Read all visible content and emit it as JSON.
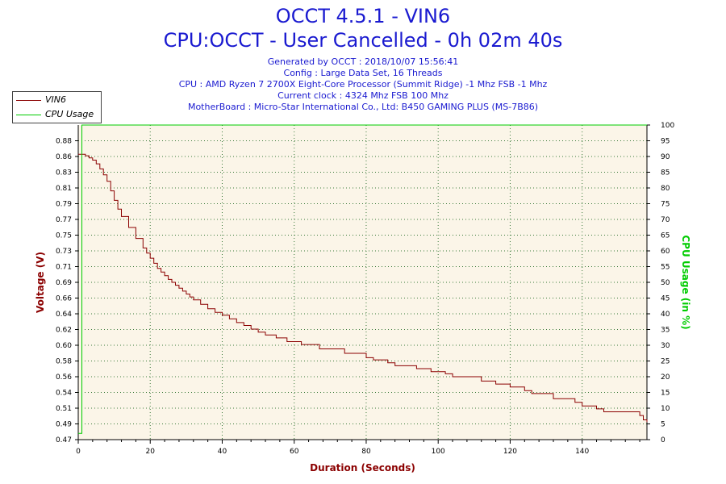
{
  "header": {
    "title": "OCCT 4.5.1 - VIN6",
    "subtitle": "CPU:OCCT - User Cancelled - 0h 02m 40s",
    "info": [
      "Generated by OCCT : 2018/10/07 15:56:41",
      "Config : Large Data Set, 16 Threads",
      "CPU : AMD Ryzen 7 2700X Eight-Core Processor (Summit Ridge) -1 Mhz FSB -1 Mhz",
      "Current clock : 4324 Mhz FSB 100 Mhz",
      "MotherBoard : Micro-Star International Co., Ltd: B450 GAMING PLUS (MS-7B86)"
    ]
  },
  "legend": {
    "items": [
      {
        "label": "VIN6",
        "color": "#8b0000"
      },
      {
        "label": "CPU Usage",
        "color": "#00cc00"
      }
    ]
  },
  "chart_data": {
    "type": "line",
    "title": "OCCT 4.5.1 - VIN6",
    "xlabel": "Duration (Seconds)",
    "ylabel": "Voltage (V)",
    "y2label": "CPU Usage (in %)",
    "xlim": [
      0,
      158
    ],
    "ylim": [
      0.47,
      0.9
    ],
    "y2lim": [
      0,
      100
    ],
    "x_ticks": [
      "0",
      "20",
      "40",
      "60",
      "80",
      "100",
      "120",
      "140"
    ],
    "y_ticks": [
      "0.47",
      "0.49",
      "0.51",
      "0.54",
      "0.56",
      "0.58",
      "0.60",
      "0.62",
      "0.64",
      "0.66",
      "0.69",
      "0.71",
      "0.73",
      "0.75",
      "0.77",
      "0.79",
      "0.81",
      "0.83",
      "0.86",
      "0.88"
    ],
    "y2_ticks": [
      "0",
      "5",
      "10",
      "15",
      "20",
      "25",
      "30",
      "35",
      "40",
      "45",
      "50",
      "55",
      "60",
      "65",
      "70",
      "75",
      "80",
      "85",
      "90",
      "95",
      "100"
    ],
    "grid": true,
    "legend_position": "top-left",
    "series": [
      {
        "name": "VIN6",
        "color": "#8b0000",
        "axis": "left",
        "x": [
          0,
          1,
          2,
          3,
          4,
          5,
          6,
          7,
          8,
          9,
          10,
          11,
          12,
          14,
          16,
          18,
          19,
          20,
          21,
          22,
          23,
          24,
          25,
          26,
          27,
          28,
          29,
          30,
          31,
          32,
          34,
          36,
          38,
          40,
          42,
          44,
          46,
          48,
          50,
          52,
          55,
          58,
          62,
          67,
          74,
          80,
          82,
          86,
          88,
          94,
          98,
          102,
          104,
          112,
          116,
          120,
          124,
          126,
          132,
          138,
          140,
          144,
          146,
          156,
          157,
          158
        ],
        "y": [
          0.86,
          0.86,
          0.858,
          0.855,
          0.852,
          0.847,
          0.84,
          0.832,
          0.823,
          0.81,
          0.797,
          0.785,
          0.775,
          0.76,
          0.745,
          0.732,
          0.725,
          0.718,
          0.711,
          0.704,
          0.699,
          0.694,
          0.689,
          0.685,
          0.681,
          0.677,
          0.673,
          0.669,
          0.665,
          0.661,
          0.655,
          0.649,
          0.644,
          0.64,
          0.635,
          0.63,
          0.626,
          0.621,
          0.617,
          0.613,
          0.609,
          0.604,
          0.6,
          0.594,
          0.588,
          0.582,
          0.579,
          0.575,
          0.571,
          0.567,
          0.563,
          0.56,
          0.556,
          0.55,
          0.546,
          0.542,
          0.537,
          0.533,
          0.526,
          0.521,
          0.516,
          0.512,
          0.508,
          0.503,
          0.497,
          0.494
        ]
      },
      {
        "name": "CPU Usage",
        "color": "#00cc00",
        "axis": "right",
        "x": [
          0,
          0.5,
          1,
          158
        ],
        "y": [
          2,
          2,
          100,
          100
        ]
      }
    ]
  }
}
